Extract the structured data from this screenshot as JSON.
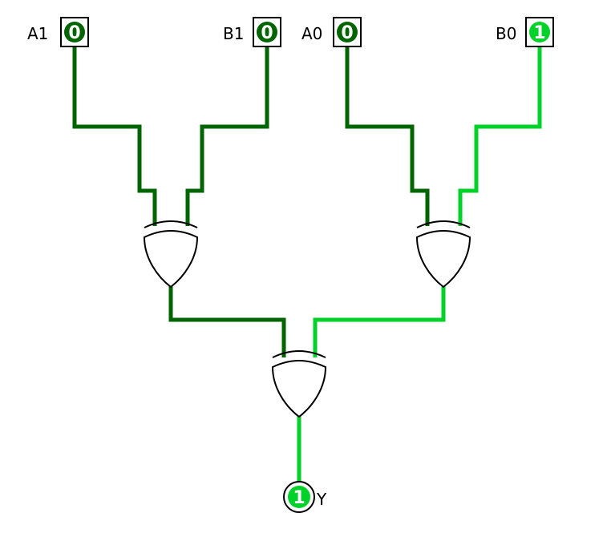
{
  "colors": {
    "wire_low": "#006400",
    "wire_high": "#00d22a",
    "pin_value_high": "#00d22a",
    "pin_value_low": "#006400",
    "gate_stroke": "#000000"
  },
  "inputs": [
    {
      "label": "A1",
      "value": "0",
      "state": "low"
    },
    {
      "label": "B1",
      "value": "0",
      "state": "low"
    },
    {
      "label": "A0",
      "value": "0",
      "state": "low"
    },
    {
      "label": "B0",
      "value": "1",
      "state": "high"
    }
  ],
  "gates": [
    {
      "type": "xor",
      "output_state": "low"
    },
    {
      "type": "xor",
      "output_state": "high"
    },
    {
      "type": "xor",
      "output_state": "high"
    }
  ],
  "output": {
    "label": "Y",
    "value": "1",
    "state": "high"
  }
}
